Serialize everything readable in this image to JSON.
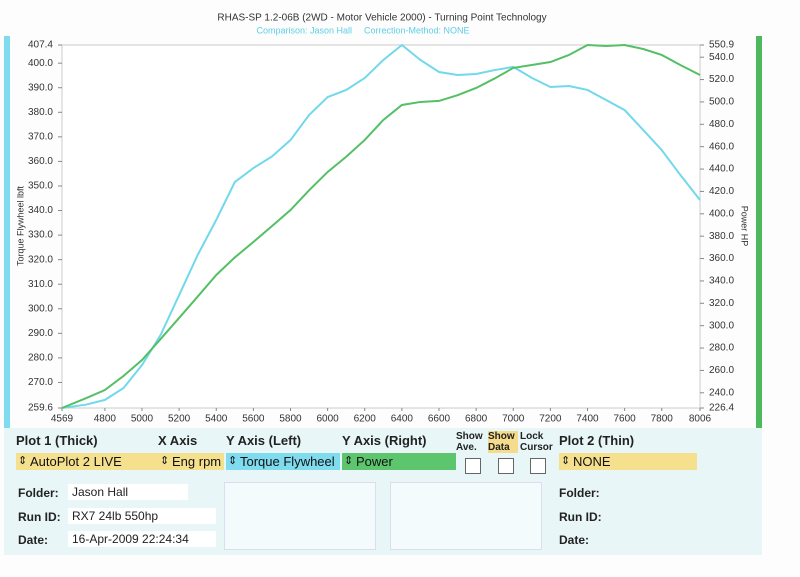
{
  "chart_data": {
    "type": "line",
    "title": "RHAS-SP 1.2-06B  (2WD - Motor Vehicle 2000) - Turning Point Technology",
    "subtitle": [
      "Comparison: Jason Hall",
      "Correction-Method: NONE"
    ],
    "y_label": "Torque Flywheel lbft",
    "y2_label": "Power HP",
    "x": [
      4569,
      4700,
      4800,
      4900,
      5000,
      5100,
      5200,
      5300,
      5400,
      5500,
      5600,
      5700,
      5800,
      5900,
      6000,
      6100,
      6200,
      6300,
      6400,
      6500,
      6600,
      6700,
      6800,
      6900,
      7000,
      7100,
      7200,
      7300,
      7400,
      7500,
      7600,
      7700,
      7800,
      7900,
      8006
    ],
    "series": [
      {
        "name": "Torque Flywheel",
        "color": "#72d8ec",
        "values": [
          259.6,
          261,
          262.9,
          267.7,
          277.1,
          289.3,
          305.6,
          321.9,
          336.2,
          351.6,
          357.3,
          362,
          368.7,
          378.9,
          386.2,
          389.1,
          394,
          401.3,
          407.4,
          401.3,
          396.4,
          395.2,
          395.6,
          397.2,
          398.5,
          394,
          390.3,
          390.7,
          389.1,
          385,
          380.9,
          372.8,
          364.6,
          354.5,
          344.3
        ]
      },
      {
        "name": "Power",
        "color": "#55bf66",
        "axis": "y2",
        "values": [
          226.4,
          235.3,
          242.5,
          255,
          269.3,
          288,
          306.9,
          326,
          345.3,
          361,
          374.8,
          389,
          403.4,
          421,
          437.4,
          451,
          466,
          483.9,
          497.3,
          500,
          500.9,
          506,
          512.5,
          521,
          530.4,
          533,
          535.7,
          542,
          550.9,
          550,
          550.9,
          547.3,
          542,
          533,
          524.1
        ]
      }
    ],
    "xlim": [
      4569,
      8006
    ],
    "xticks": [
      4569,
      4800,
      5000,
      5200,
      5400,
      5600,
      5800,
      6000,
      6200,
      6400,
      6600,
      6800,
      7000,
      7200,
      7400,
      7600,
      7800,
      8006
    ],
    "ylim": [
      259.6,
      407.4
    ],
    "yticks": [
      259.6,
      {
        "value": 270,
        "label": "270.0"
      },
      {
        "value": 280,
        "label": "280.0"
      },
      {
        "value": 290,
        "label": "290.0"
      },
      {
        "value": 300,
        "label": "300.0"
      },
      {
        "value": 310,
        "label": "310.0"
      },
      {
        "value": 320,
        "label": "320.0"
      },
      {
        "value": 330,
        "label": "330.0"
      },
      {
        "value": 340,
        "label": "340.0"
      },
      {
        "value": 350,
        "label": "350.0"
      },
      {
        "value": 360,
        "label": "360.0"
      },
      {
        "value": 370,
        "label": "370.0"
      },
      {
        "value": 380,
        "label": "380.0"
      },
      {
        "value": 390,
        "label": "390.0"
      },
      {
        "value": 400,
        "label": "400.0"
      },
      407.4
    ],
    "y2lim": [
      226.4,
      550.9
    ],
    "y2ticks": [
      226.4,
      {
        "value": 240,
        "label": "240.0"
      },
      {
        "value": 260,
        "label": "260.0"
      },
      {
        "value": 280,
        "label": "280.0"
      },
      {
        "value": 300,
        "label": "300.0"
      },
      {
        "value": 320,
        "label": "320.0"
      },
      {
        "value": 340,
        "label": "340.0"
      },
      {
        "value": 360,
        "label": "360.0"
      },
      {
        "value": 380,
        "label": "380.0"
      },
      {
        "value": 400,
        "label": "400.0"
      },
      {
        "value": 420,
        "label": "420.0"
      },
      {
        "value": 440,
        "label": "440.0"
      },
      {
        "value": 460,
        "label": "460.0"
      },
      {
        "value": 480,
        "label": "480.0"
      },
      {
        "value": 500,
        "label": "500.0"
      },
      {
        "value": 520,
        "label": "520.0"
      },
      {
        "value": 540,
        "label": "540.0"
      },
      550.9
    ],
    "grid": false
  },
  "panel": {
    "headers": [
      "Plot 1 (Thick)",
      "X Axis",
      "Y Axis (Left)",
      "Y Axis (Right)",
      "Plot 2 (Thin)"
    ],
    "toggles": [
      "Show Ave.",
      "Show Data",
      "Lock Cursor"
    ],
    "selections": [
      "AutoPlot 2 LIVE",
      "Eng rpm",
      "Torque Flywheel",
      "Power",
      "NONE"
    ],
    "left": [
      [
        "Folder:",
        "Jason Hall"
      ],
      [
        "Run ID:",
        "RX7 24lb 550hp"
      ],
      [
        "Date:",
        "16-Apr-2009  22:24:34"
      ]
    ],
    "right": [
      "Folder:",
      "Run ID:",
      "Date:"
    ]
  }
}
